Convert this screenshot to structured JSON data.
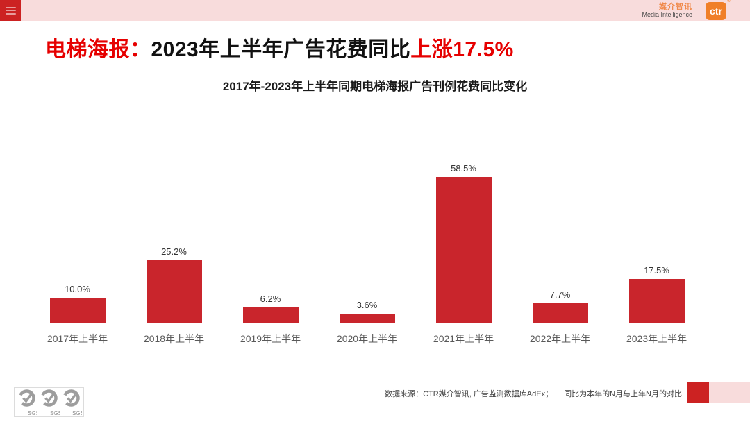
{
  "topbar": {
    "menu_icon": "hamburger-icon"
  },
  "brand": {
    "name_cn": "媒介智讯",
    "name_en": "Media Intelligence",
    "logo_text": "ctr",
    "reg_mark": "®"
  },
  "title": {
    "prefix": "电梯海报：",
    "middle": "2023年上半年广告花费同比",
    "highlight": "上涨17.5%"
  },
  "chart_data": {
    "type": "bar",
    "title": "2017年-2023年上半年同期电梯海报广告刊例花费同比变化",
    "categories": [
      "2017年上半年",
      "2018年上半年",
      "2019年上半年",
      "2020年上半年",
      "2021年上半年",
      "2022年上半年",
      "2023年上半年"
    ],
    "values": [
      10.0,
      25.2,
      6.2,
      3.6,
      58.5,
      7.7,
      17.5
    ],
    "value_labels": [
      "10.0%",
      "25.2%",
      "6.2%",
      "3.6%",
      "58.5%",
      "7.7%",
      "17.5%"
    ],
    "unit": "%",
    "bar_color": "#c9252c",
    "label_color": "#333333",
    "category_color": "#595959",
    "ylim": [
      0,
      60
    ],
    "grid": false,
    "legend": "none",
    "xlabel": "",
    "ylabel": ""
  },
  "footer": {
    "source": "数据来源：CTR媒介智讯, 广告监测数据库AdEx；",
    "note": "同比为本年的N月与上年N月的对比",
    "sgs_label": "SGS"
  },
  "colors": {
    "accent_red": "#cc2222",
    "bar_red": "#c9252c",
    "title_red": "#e60000",
    "topbar_pink": "#f8dcdc",
    "brand_orange": "#f07f28"
  }
}
